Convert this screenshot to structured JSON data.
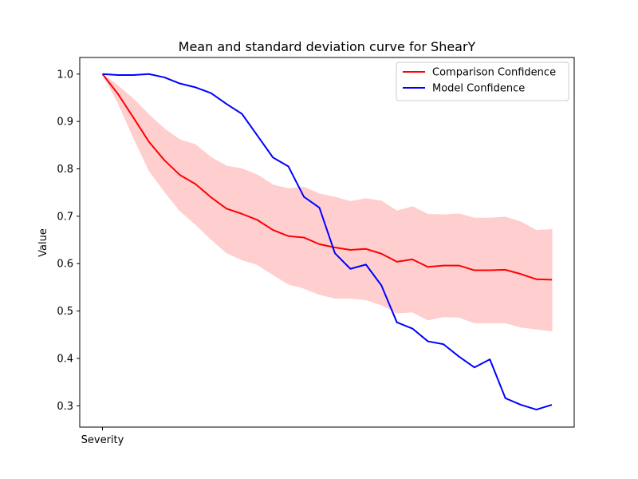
{
  "chart_data": {
    "type": "line",
    "title": "Mean and standard deviation curve for ShearY",
    "xlabel": "",
    "ylabel": "Value",
    "x_tick_labels": [
      "Severity"
    ],
    "ylim": [
      0.255,
      1.035
    ],
    "y_ticks": [
      0.3,
      0.4,
      0.5,
      0.6,
      0.7,
      0.8,
      0.9,
      1.0
    ],
    "y_tick_labels": [
      "0.3",
      "0.4",
      "0.5",
      "0.6",
      "0.7",
      "0.8",
      "0.9",
      "1.0"
    ],
    "grid": false,
    "legend_position": "top-right",
    "series": [
      {
        "name": "Comparison Confidence",
        "color": "#ff0000",
        "values": [
          1.0,
          0.958,
          0.908,
          0.857,
          0.818,
          0.787,
          0.768,
          0.74,
          0.716,
          0.705,
          0.692,
          0.671,
          0.658,
          0.655,
          0.641,
          0.634,
          0.629,
          0.631,
          0.621,
          0.604,
          0.609,
          0.593,
          0.596,
          0.596,
          0.586,
          0.586,
          0.587,
          0.578,
          0.567,
          0.566
        ],
        "band_upper": [
          1.0,
          0.975,
          0.947,
          0.914,
          0.884,
          0.861,
          0.851,
          0.824,
          0.806,
          0.8,
          0.787,
          0.766,
          0.758,
          0.761,
          0.747,
          0.74,
          0.731,
          0.737,
          0.732,
          0.711,
          0.72,
          0.704,
          0.703,
          0.705,
          0.696,
          0.696,
          0.698,
          0.688,
          0.67,
          0.672
        ],
        "band_lower": [
          1.0,
          0.94,
          0.866,
          0.797,
          0.752,
          0.712,
          0.683,
          0.652,
          0.623,
          0.608,
          0.598,
          0.577,
          0.557,
          0.548,
          0.535,
          0.527,
          0.527,
          0.524,
          0.513,
          0.496,
          0.498,
          0.481,
          0.488,
          0.487,
          0.475,
          0.475,
          0.475,
          0.466,
          0.462,
          0.458
        ],
        "band_color": "#ffcccc"
      },
      {
        "name": "Model Confidence",
        "color": "#0000ff",
        "values": [
          1.0,
          0.998,
          0.998,
          1.0,
          0.993,
          0.98,
          0.972,
          0.96,
          0.937,
          0.916,
          0.87,
          0.824,
          0.805,
          0.741,
          0.718,
          0.622,
          0.589,
          0.598,
          0.554,
          0.476,
          0.463,
          0.436,
          0.43,
          0.404,
          0.381,
          0.398,
          0.316,
          0.302,
          0.292,
          0.302
        ]
      }
    ]
  }
}
